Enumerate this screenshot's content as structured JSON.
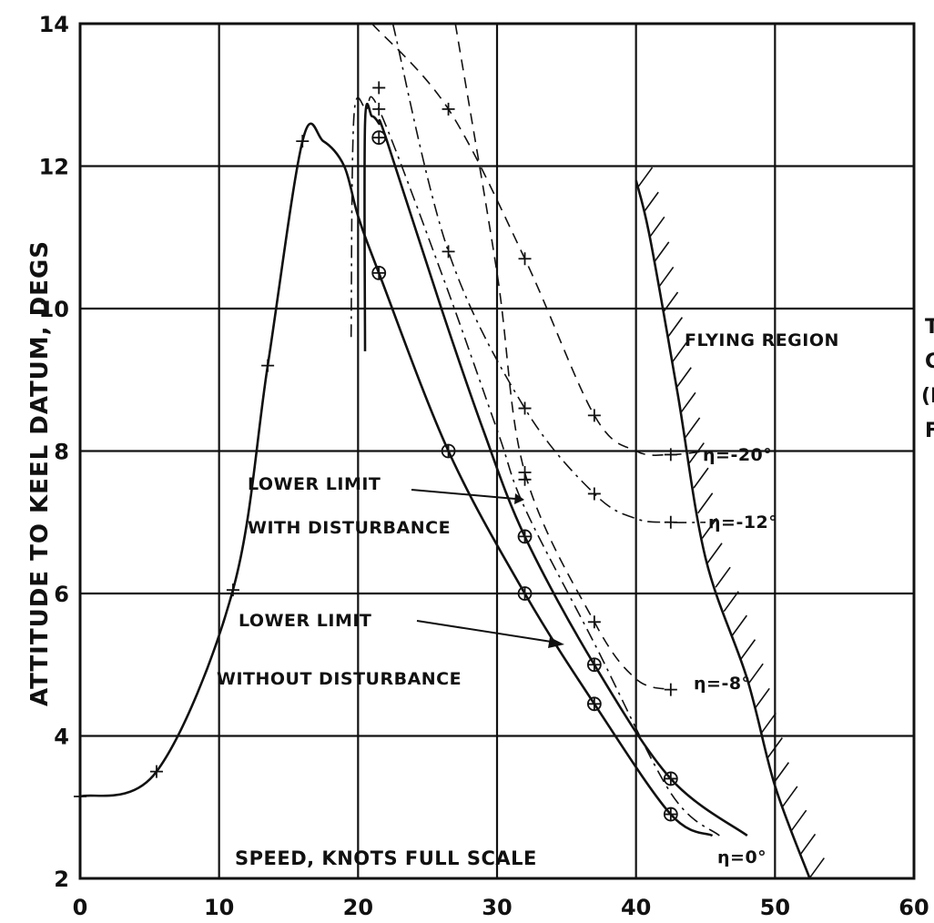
{
  "chart_data": {
    "type": "line",
    "xlabel": "SPEED, KNOTS FULL SCALE",
    "ylabel": "ATTITUDE TO KEEL DATUM, DEGS",
    "xlim": [
      0,
      60
    ],
    "ylim": [
      2,
      14
    ],
    "x_ticks": [
      "0",
      "10",
      "20",
      "30",
      "40",
      "50",
      "60"
    ],
    "y_ticks": [
      "2",
      "4",
      "6",
      "8",
      "10",
      "12",
      "14"
    ],
    "grid": true,
    "series": [
      {
        "label": "",
        "style": "solid",
        "marker": "plus",
        "points": [
          [
            0,
            3.15
          ],
          [
            5.5,
            3.5
          ],
          [
            11,
            6.05
          ],
          [
            13.5,
            9.2
          ],
          [
            16,
            12.35
          ],
          [
            17.5,
            12.35
          ],
          [
            19,
            12.0
          ],
          [
            20,
            11.3
          ],
          [
            21.5,
            10.5
          ],
          [
            26.5,
            8.0
          ],
          [
            32,
            6.0
          ],
          [
            37,
            4.45
          ],
          [
            42.5,
            2.9
          ],
          [
            45.5,
            2.6
          ]
        ],
        "marked_points": [
          [
            0,
            3.15
          ],
          [
            5.5,
            3.5
          ],
          [
            11,
            6.05
          ],
          [
            13.5,
            9.2
          ],
          [
            16,
            12.35
          ]
        ],
        "circle_markers": [
          [
            21.5,
            10.5
          ],
          [
            26.5,
            8.0
          ],
          [
            32,
            6.0
          ],
          [
            37,
            4.45
          ],
          [
            42.5,
            2.9
          ]
        ]
      },
      {
        "label": "LOWER LIMIT WITH DISTURBANCE",
        "style": "solid",
        "marker": "circle",
        "points": [
          [
            20.5,
            9.4
          ],
          [
            20.5,
            12.6
          ],
          [
            21.0,
            12.7
          ],
          [
            21.5,
            12.6
          ],
          [
            22,
            12.4
          ],
          [
            26,
            10.0
          ],
          [
            29,
            8.3
          ],
          [
            32,
            6.8
          ],
          [
            37,
            5.0
          ],
          [
            42.5,
            3.4
          ],
          [
            48,
            2.6
          ]
        ],
        "circle_markers": [
          [
            21.5,
            12.4
          ],
          [
            32,
            6.8
          ],
          [
            37,
            5.0
          ],
          [
            42.5,
            3.4
          ]
        ]
      },
      {
        "label": "LOWER LIMIT WITHOUT DISTURBANCE",
        "style": "dash-dot",
        "marker": "plus",
        "points": [
          [
            19.5,
            9.6
          ],
          [
            19.7,
            12.7
          ],
          [
            20.6,
            12.8
          ],
          [
            21.5,
            12.8
          ],
          [
            26,
            10.5
          ],
          [
            30,
            8.3
          ],
          [
            32,
            7.2
          ],
          [
            37,
            5.3
          ],
          [
            42.5,
            3.2
          ],
          [
            46,
            2.6
          ]
        ],
        "marked_points": [
          [
            21.5,
            12.8
          ],
          [
            32,
            7.6
          ]
        ]
      },
      {
        "label": "η=-20°",
        "style": "dashed",
        "marker": "plus",
        "points": [
          [
            21,
            14.0
          ],
          [
            26.5,
            12.8
          ],
          [
            32,
            10.7
          ],
          [
            37,
            8.5
          ],
          [
            40,
            8.0
          ],
          [
            42.5,
            7.95
          ],
          [
            45,
            8.0
          ]
        ],
        "marked_points": [
          [
            21.5,
            13.1
          ],
          [
            26.5,
            12.8
          ],
          [
            32,
            10.7
          ],
          [
            37,
            8.5
          ],
          [
            42.5,
            7.95
          ]
        ]
      },
      {
        "label": "η=-12°",
        "style": "dash-dot",
        "marker": "plus",
        "points": [
          [
            22.5,
            14.0
          ],
          [
            26.5,
            10.8
          ],
          [
            32,
            8.6
          ],
          [
            37,
            7.4
          ],
          [
            40,
            7.05
          ],
          [
            42.5,
            7.0
          ],
          [
            45,
            7.0
          ]
        ],
        "marked_points": [
          [
            26.5,
            10.8
          ],
          [
            32,
            8.6
          ],
          [
            37,
            7.4
          ],
          [
            42.5,
            7.0
          ]
        ]
      },
      {
        "label": "η=-8°",
        "style": "dashed",
        "marker": "plus",
        "points": [
          [
            27,
            14.0
          ],
          [
            30,
            10.5
          ],
          [
            32,
            7.7
          ],
          [
            37,
            5.6
          ],
          [
            40,
            4.8
          ],
          [
            42.5,
            4.65
          ]
        ],
        "marked_points": [
          [
            32,
            7.7
          ],
          [
            37,
            5.6
          ],
          [
            42.5,
            4.65
          ]
        ]
      },
      {
        "label": "FLYING REGION",
        "style": "solid-hatched",
        "points": [
          [
            40,
            11.8
          ],
          [
            41,
            11.0
          ],
          [
            43,
            8.8
          ],
          [
            45,
            6.5
          ],
          [
            48,
            4.8
          ],
          [
            50,
            3.3
          ],
          [
            52.5,
            2.0
          ]
        ]
      }
    ],
    "annotations": [
      {
        "text": "FLYING REGION",
        "x": 45,
        "y": 9.2
      },
      {
        "text": "η=-20°",
        "x": 44.5,
        "y": 7.95
      },
      {
        "text": "η=-12°",
        "x": 43.5,
        "y": 7.0
      },
      {
        "text": "η=-8°",
        "x": 43.5,
        "y": 4.6
      },
      {
        "text": "η=0°",
        "x": 48,
        "y": 2.9
      },
      {
        "text": "LOWER LIMIT",
        "x": 11,
        "y": 7.5
      },
      {
        "text": "WITH DISTURBANCE",
        "x": 11,
        "y": 7.0
      },
      {
        "text": "LOWER LIMIT",
        "x": 10.5,
        "y": 5.8
      },
      {
        "text": "WITHOUT DISTURBANCE",
        "x": 10,
        "y": 5.2
      }
    ],
    "clipped_text": [
      "T",
      "C",
      "(I",
      "F"
    ]
  }
}
